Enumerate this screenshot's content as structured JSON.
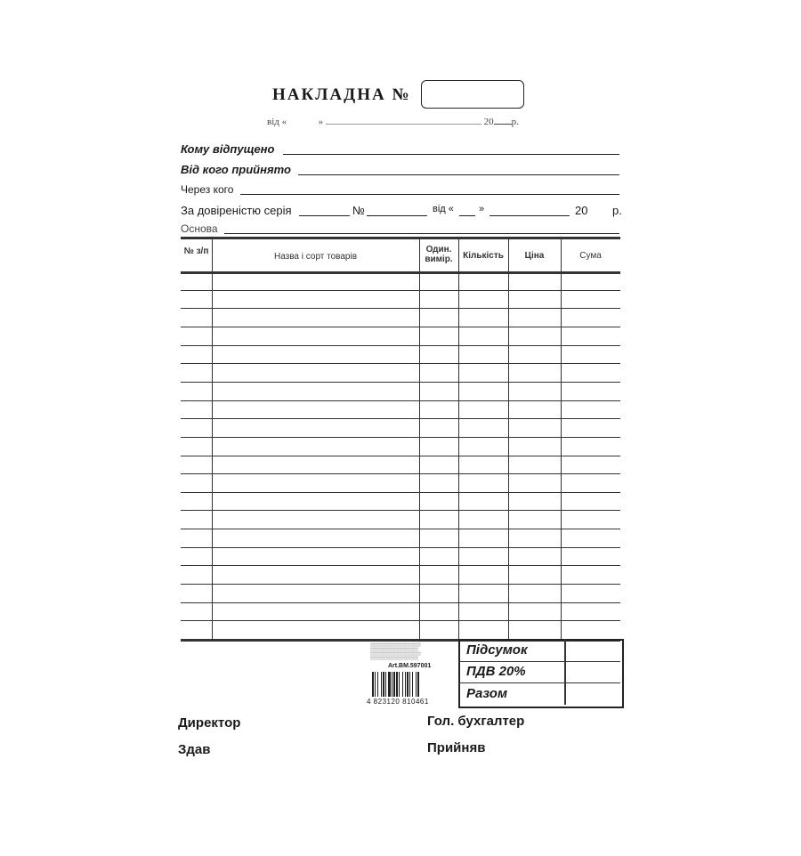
{
  "header": {
    "title": "НАКЛАДНА №",
    "number_value": "",
    "date_line": {
      "prefix": "від «",
      "quote_close": "»",
      "year_prefix": "20",
      "year_suffix": "р."
    }
  },
  "fields": [
    {
      "label": "Кому відпущено",
      "value": ""
    },
    {
      "label": "Від кого прийнято",
      "value": ""
    },
    {
      "label": "Через кого",
      "value": ""
    },
    {
      "label": "За довіреністю серія",
      "value": ""
    },
    {
      "label": "Основа",
      "value": ""
    }
  ],
  "power_of_attorney": {
    "number_label": "№",
    "date_prefix": "від «",
    "quote_close": "»",
    "year_prefix": "20",
    "year_suffix": "р."
  },
  "table": {
    "columns": [
      "№ з/п",
      "Назва і сорт товарів",
      "Один. виміp.",
      "Кількість",
      "Ціна",
      "Сума"
    ],
    "row_count": 20
  },
  "totals": [
    {
      "label": "Підсумок",
      "value": ""
    },
    {
      "label": "ПДВ 20%",
      "value": ""
    },
    {
      "label": "Разом",
      "value": ""
    }
  ],
  "product_info": {
    "article": "Art.BM.597001",
    "barcode": "4 823120 810461"
  },
  "signatures": {
    "director": "Директор",
    "chief_accountant": "Гол. бухгалтер",
    "handed": "Здав",
    "received": "Прийняв"
  }
}
